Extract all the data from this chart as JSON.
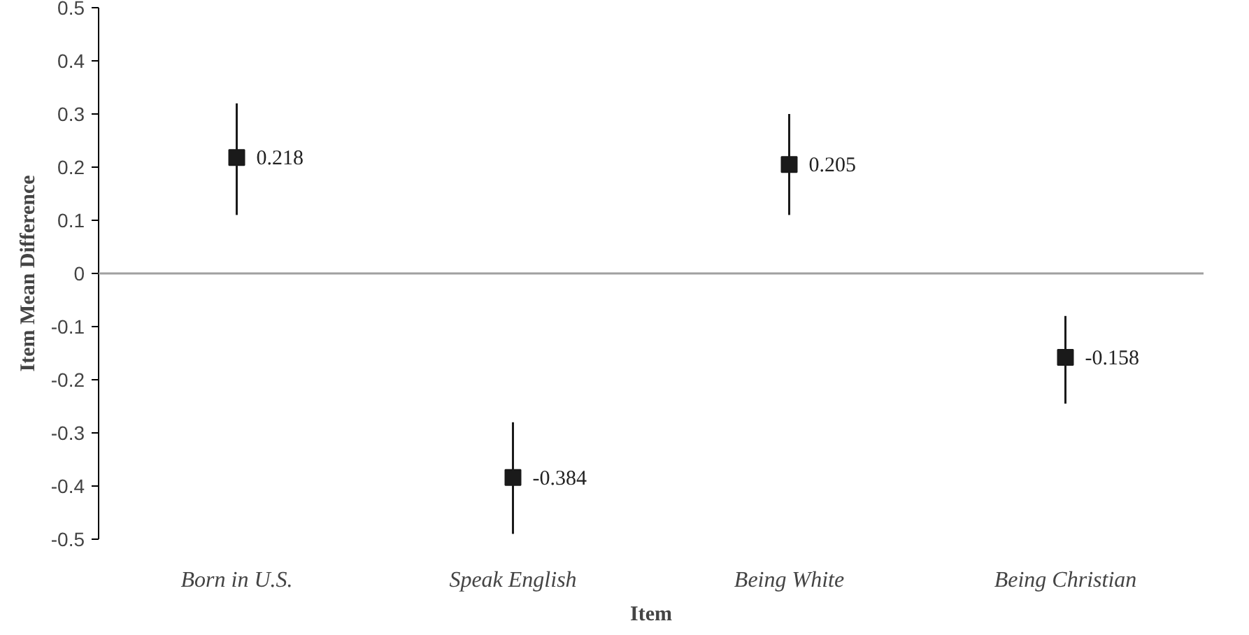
{
  "chart_data": {
    "type": "scatter",
    "xlabel": "Item",
    "ylabel": "Item Mean Difference",
    "categories": [
      "Born in U.S.",
      "Speak English",
      "Being White",
      "Being Christian"
    ],
    "values": [
      0.218,
      -0.384,
      0.205,
      -0.158
    ],
    "errors": [
      [
        0.11,
        0.32
      ],
      [
        -0.49,
        -0.28
      ],
      [
        0.11,
        0.3
      ],
      [
        -0.245,
        -0.08
      ]
    ],
    "value_labels": [
      "0.218",
      "-0.384",
      "0.205",
      "-0.158"
    ],
    "color": "#1a1a1a",
    "marker": "square",
    "grid": false,
    "ylim": [
      -0.5,
      0.5
    ],
    "yticks": [
      -0.5,
      -0.4,
      -0.3,
      -0.2,
      -0.1,
      0,
      0.1,
      0.2,
      0.3,
      0.4,
      0.5
    ],
    "ref_lines": [
      {
        "axis": "y",
        "value": 0,
        "color": "#a0a0a0"
      }
    ]
  }
}
